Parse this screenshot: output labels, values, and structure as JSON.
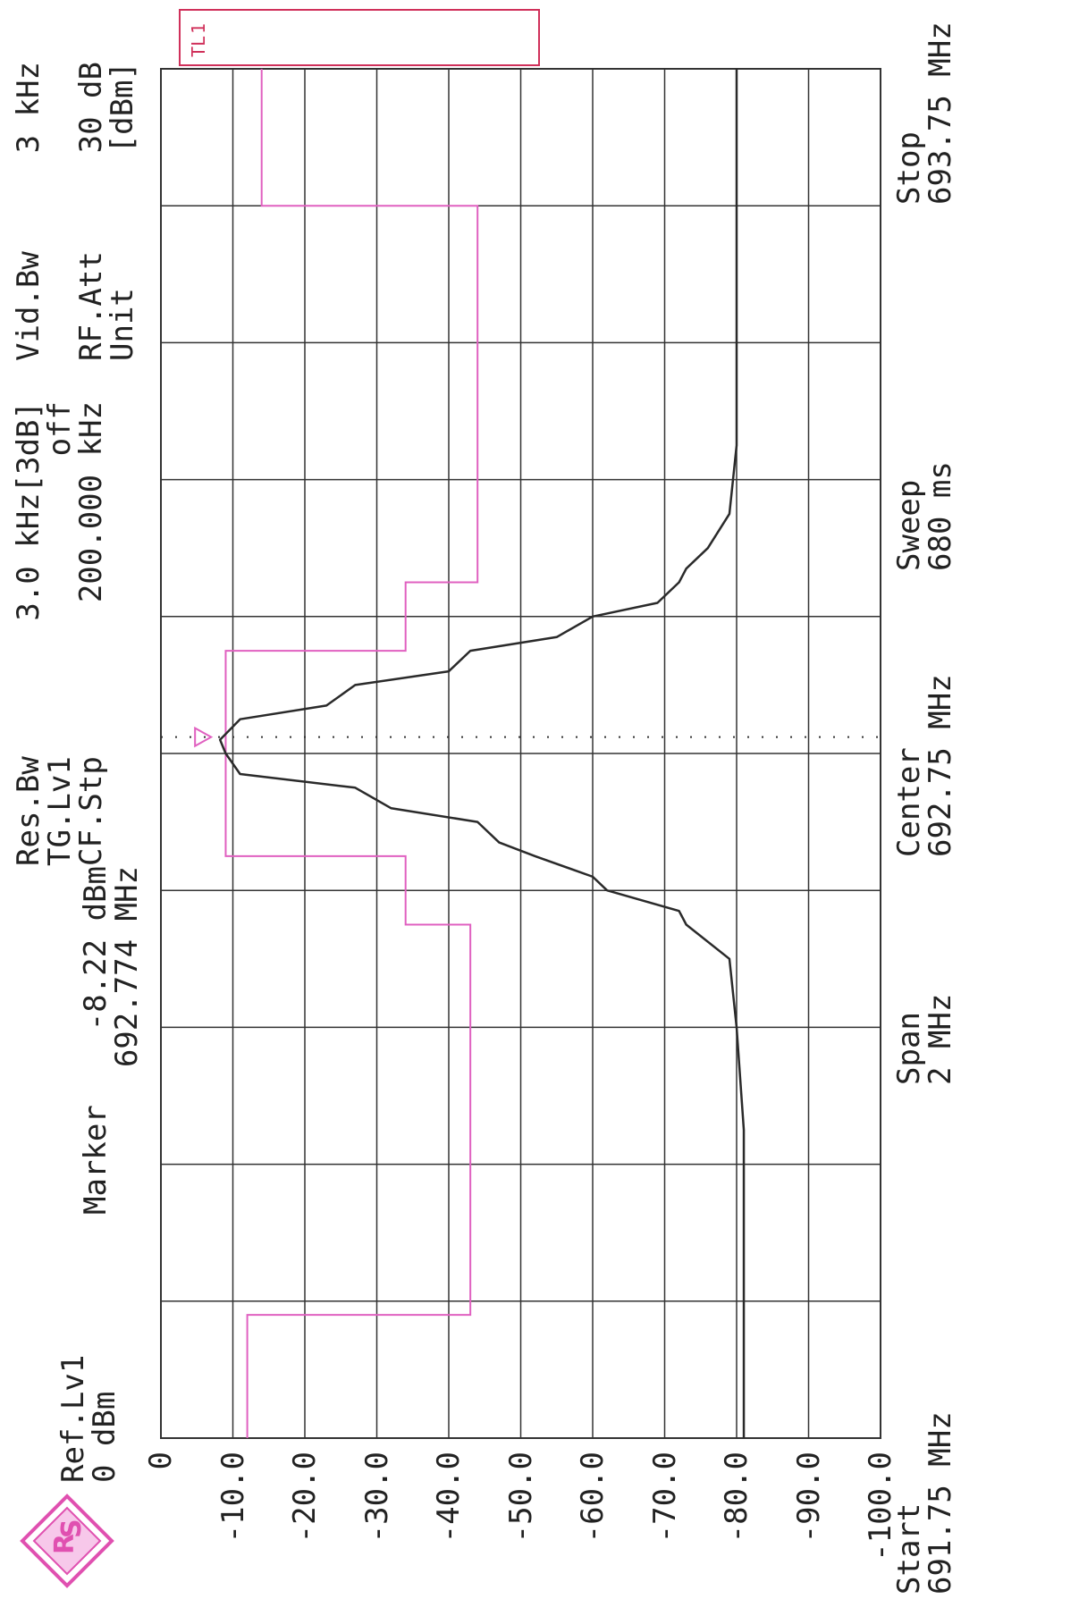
{
  "header": {
    "ref_lvl_label": "Ref.Lv1",
    "ref_lvl_value": "0 dBm",
    "marker_label": "Marker",
    "marker_value": "-8.22 dBm",
    "marker_freq": "692.774 MHz",
    "res_bw_label": "Res.Bw",
    "res_bw_value": "3.0 kHz[3dB]",
    "tg_lvl_label": "TG.Lv1",
    "tg_lvl_value": "off",
    "cf_stp_label": "CF.Stp",
    "cf_stp_value": "200.000 kHz",
    "vid_bw_label": "Vid.Bw",
    "vid_bw_value": "3 kHz",
    "rf_att_label": "RF.Att",
    "rf_att_value": "30 dB",
    "unit_label": "Unit",
    "unit_value": "[dBm]"
  },
  "footer": {
    "start_label": "Start",
    "start_value": "691.75 MHz",
    "span_label": "Span",
    "span_value": "2 MHz",
    "center_label": "Center",
    "center_value": "692.75 MHz",
    "sweep_label": "Sweep",
    "sweep_value": "680 ms",
    "stop_label": "Stop",
    "stop_value": "693.75 MHz"
  },
  "tl_box": {
    "label": "TL",
    "value": "1"
  },
  "colors": {
    "trace": "#2a2a2a",
    "limit": "#e060c0",
    "grid": "#333333",
    "brand": "#e050b0"
  },
  "chart_data": {
    "type": "line",
    "title": "",
    "xlabel": "",
    "ylabel": "",
    "x_unit": "MHz",
    "xlim": [
      691.75,
      693.75
    ],
    "ylim": [
      -100,
      0
    ],
    "grid": true,
    "y_ticks": [
      0,
      -10,
      -20,
      -30,
      -40,
      -50,
      -60,
      -70,
      -80,
      -90,
      -100
    ],
    "y_tick_labels": [
      "0",
      "-10.0",
      "-20.0",
      "-30.0",
      "-40.0",
      "-50.0",
      "-60.0",
      "-70.0",
      "-80.0",
      "-90.0",
      "-100.0"
    ],
    "marker": {
      "x": 692.774,
      "y": -8.22
    },
    "series": [
      {
        "x": [
          691.75,
          691.9,
          692.05,
          692.2,
          692.35,
          692.45,
          692.5,
          692.52,
          692.55,
          692.57,
          692.6,
          692.62,
          692.65,
          692.67,
          692.7,
          692.72,
          692.75,
          692.77,
          692.8,
          692.82,
          692.85,
          692.87,
          692.9,
          692.92,
          692.95,
          692.97,
          693.0,
          693.02,
          693.05,
          693.1,
          693.2,
          693.35,
          693.5,
          693.65,
          693.75
        ],
        "y": [
          -81,
          -81,
          -81,
          -81,
          -80,
          -79,
          -73,
          -72,
          -62,
          -60,
          -52,
          -47,
          -44,
          -32,
          -27,
          -11,
          -9,
          -8.22,
          -11,
          -23,
          -27,
          -40,
          -43,
          -55,
          -60,
          -69,
          -72,
          -73,
          -76,
          -79,
          -80,
          -80,
          -80,
          -80,
          -80
        ]
      }
    ],
    "limit_line": {
      "x": [
        691.75,
        691.93,
        691.93,
        692.5,
        692.5,
        692.6,
        692.6,
        692.9,
        692.9,
        693.0,
        693.0,
        693.55,
        693.55,
        693.75
      ],
      "y": [
        -12,
        -12,
        -43,
        -43,
        -34,
        -34,
        -9,
        -9,
        -34,
        -34,
        -44,
        -44,
        -14,
        -14
      ]
    }
  }
}
